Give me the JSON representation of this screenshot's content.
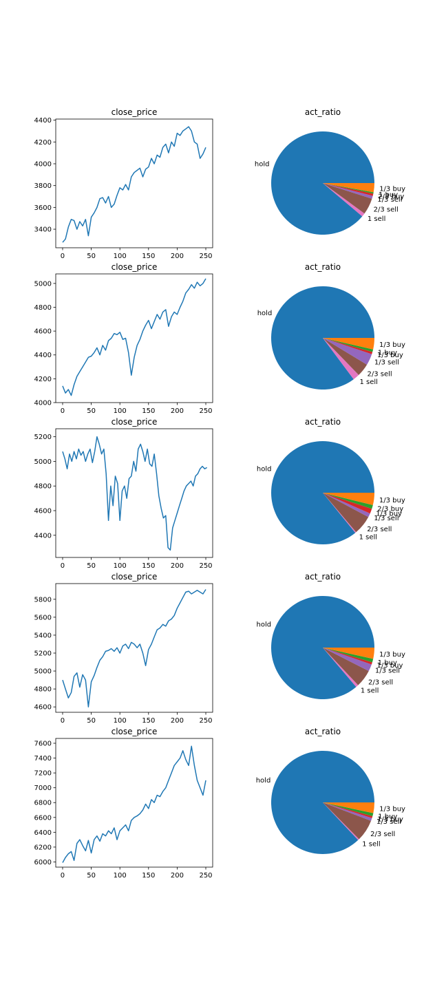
{
  "chart_data": [
    {
      "type": "line",
      "title": "close_price",
      "xlim": [
        -12,
        262
      ],
      "ylim": [
        3230,
        4410
      ],
      "xticks": [
        0,
        50,
        100,
        150,
        200,
        250
      ],
      "yticks": [
        3400,
        3600,
        3800,
        4000,
        4200,
        4400
      ],
      "series": [
        {
          "color": "#1f77b4",
          "x": [
            0,
            5,
            10,
            15,
            20,
            25,
            30,
            35,
            40,
            45,
            50,
            55,
            60,
            65,
            70,
            75,
            80,
            85,
            90,
            95,
            100,
            105,
            110,
            115,
            120,
            125,
            130,
            135,
            140,
            145,
            150,
            155,
            160,
            165,
            170,
            175,
            180,
            185,
            190,
            195,
            200,
            205,
            210,
            215,
            220,
            225,
            230,
            235,
            240,
            245,
            250
          ],
          "y": [
            3280,
            3310,
            3420,
            3490,
            3480,
            3400,
            3470,
            3430,
            3490,
            3340,
            3510,
            3550,
            3600,
            3680,
            3690,
            3640,
            3700,
            3600,
            3630,
            3710,
            3780,
            3760,
            3810,
            3760,
            3880,
            3920,
            3940,
            3960,
            3880,
            3950,
            3970,
            4050,
            4000,
            4080,
            4060,
            4150,
            4180,
            4100,
            4200,
            4160,
            4280,
            4260,
            4300,
            4320,
            4340,
            4300,
            4200,
            4180,
            4050,
            4090,
            4150
          ]
        }
      ]
    },
    {
      "type": "pie",
      "title": "act_ratio",
      "labels": [
        "hold",
        "1 sell",
        "2/3 sell",
        "1/3 sell",
        "2/3 buy",
        "1 buy",
        "1/3 buy"
      ],
      "values": [
        86.8,
        1.1,
        5.0,
        0.9,
        0.7,
        0.4,
        2.8
      ],
      "colors": [
        "#1f77b4",
        "#e377c2",
        "#8c564b",
        "#9467bd",
        "#d62728",
        "#2ca02c",
        "#ff7f0e"
      ],
      "label_order": [
        0,
        1,
        2,
        3,
        4,
        5,
        6
      ],
      "label_fan": 1
    },
    {
      "type": "line",
      "title": "close_price",
      "xlim": [
        -12,
        262
      ],
      "ylim": [
        4000,
        5080
      ],
      "xticks": [
        0,
        50,
        100,
        150,
        200,
        250
      ],
      "yticks": [
        4000,
        4200,
        4400,
        4600,
        4800,
        5000
      ],
      "series": [
        {
          "color": "#1f77b4",
          "x": [
            0,
            5,
            10,
            15,
            20,
            25,
            30,
            35,
            40,
            45,
            50,
            55,
            60,
            65,
            70,
            75,
            80,
            85,
            90,
            95,
            100,
            105,
            110,
            115,
            120,
            125,
            130,
            135,
            140,
            145,
            150,
            155,
            160,
            165,
            170,
            175,
            180,
            185,
            190,
            195,
            200,
            205,
            210,
            215,
            220,
            225,
            230,
            235,
            240,
            245,
            250
          ],
          "y": [
            4140,
            4080,
            4110,
            4060,
            4150,
            4220,
            4260,
            4300,
            4340,
            4380,
            4390,
            4420,
            4460,
            4400,
            4480,
            4440,
            4520,
            4540,
            4580,
            4570,
            4590,
            4530,
            4540,
            4420,
            4230,
            4380,
            4480,
            4530,
            4600,
            4650,
            4690,
            4620,
            4680,
            4740,
            4700,
            4760,
            4780,
            4640,
            4720,
            4760,
            4740,
            4800,
            4850,
            4920,
            4950,
            4990,
            4960,
            5010,
            4980,
            5000,
            5040
          ]
        }
      ]
    },
    {
      "type": "pie",
      "title": "act_ratio",
      "labels": [
        "hold",
        "1 sell",
        "2/3 sell",
        "1/3 sell",
        "1/3 buy",
        "1 buy",
        "1/3 buy"
      ],
      "values": [
        83.5,
        2.0,
        4.0,
        3.5,
        0.7,
        0.8,
        3.5
      ],
      "colors": [
        "#1f77b4",
        "#e377c2",
        "#8c564b",
        "#9467bd",
        "#d62728",
        "#2ca02c",
        "#ff7f0e"
      ],
      "label_order": [
        0,
        1,
        2,
        3,
        4,
        5,
        6
      ],
      "label_fan": 1
    },
    {
      "type": "line",
      "title": "close_price",
      "xlim": [
        -12,
        262
      ],
      "ylim": [
        4220,
        5265
      ],
      "xticks": [
        0,
        50,
        100,
        150,
        200,
        250
      ],
      "yticks": [
        4400,
        4600,
        4800,
        5000,
        5200
      ],
      "series": [
        {
          "color": "#1f77b4",
          "x": [
            0,
            4,
            8,
            12,
            16,
            20,
            24,
            28,
            32,
            36,
            40,
            44,
            48,
            52,
            56,
            60,
            64,
            68,
            72,
            76,
            80,
            84,
            88,
            92,
            96,
            100,
            104,
            108,
            112,
            116,
            120,
            124,
            128,
            132,
            136,
            140,
            144,
            148,
            152,
            156,
            160,
            164,
            168,
            172,
            176,
            180,
            184,
            188,
            192,
            196,
            200,
            204,
            208,
            212,
            216,
            220,
            224,
            228,
            232,
            236,
            240,
            244,
            248,
            252
          ],
          "y": [
            5080,
            5020,
            4940,
            5060,
            5000,
            5080,
            5020,
            5100,
            5050,
            5080,
            5000,
            5060,
            5100,
            4990,
            5080,
            5200,
            5140,
            5060,
            5100,
            4900,
            4520,
            4800,
            4640,
            4880,
            4820,
            4520,
            4760,
            4800,
            4700,
            4860,
            4880,
            5000,
            4920,
            5100,
            5140,
            5080,
            5000,
            5100,
            4980,
            4960,
            5060,
            4900,
            4720,
            4620,
            4540,
            4560,
            4300,
            4280,
            4460,
            4520,
            4580,
            4640,
            4700,
            4760,
            4800,
            4820,
            4840,
            4800,
            4880,
            4900,
            4940,
            4960,
            4940,
            4950
          ]
        }
      ]
    },
    {
      "type": "pie",
      "title": "act_ratio",
      "labels": [
        "hold",
        "1 sell",
        "2/3 sell",
        "1/3 sell",
        "1/3 buy",
        "2/3 buy",
        "1/3 buy"
      ],
      "values": [
        85.0,
        0.3,
        6.0,
        1.2,
        1.5,
        1.2,
        3.8
      ],
      "colors": [
        "#1f77b4",
        "#e377c2",
        "#8c564b",
        "#9467bd",
        "#d62728",
        "#2ca02c",
        "#ff7f0e"
      ],
      "label_order": [
        0,
        1,
        2,
        3,
        5,
        4,
        6
      ],
      "label_fan": 1
    },
    {
      "type": "line",
      "title": "close_price",
      "xlim": [
        -12,
        262
      ],
      "ylim": [
        4540,
        5975
      ],
      "xticks": [
        0,
        50,
        100,
        150,
        200,
        250
      ],
      "yticks": [
        4600,
        4800,
        5000,
        5200,
        5400,
        5600,
        5800
      ],
      "series": [
        {
          "color": "#1f77b4",
          "x": [
            0,
            5,
            10,
            15,
            20,
            25,
            30,
            35,
            40,
            45,
            50,
            55,
            60,
            65,
            70,
            75,
            80,
            85,
            90,
            95,
            100,
            105,
            110,
            115,
            120,
            125,
            130,
            135,
            140,
            145,
            150,
            155,
            160,
            165,
            170,
            175,
            180,
            185,
            190,
            195,
            200,
            205,
            210,
            215,
            220,
            225,
            230,
            235,
            240,
            245,
            250
          ],
          "y": [
            4900,
            4800,
            4700,
            4760,
            4940,
            4980,
            4820,
            4960,
            4900,
            4600,
            4880,
            4950,
            5040,
            5120,
            5160,
            5220,
            5230,
            5250,
            5220,
            5260,
            5200,
            5280,
            5300,
            5250,
            5320,
            5300,
            5260,
            5300,
            5200,
            5060,
            5240,
            5300,
            5380,
            5460,
            5480,
            5520,
            5500,
            5560,
            5580,
            5620,
            5700,
            5760,
            5820,
            5880,
            5890,
            5860,
            5880,
            5900,
            5880,
            5860,
            5910
          ]
        }
      ]
    },
    {
      "type": "pie",
      "title": "act_ratio",
      "labels": [
        "hold",
        "1 sell",
        "2/3 sell",
        "1/3 sell",
        "1/3 buy",
        "1 buy",
        "1/3 buy"
      ],
      "values": [
        86.2,
        0.8,
        5.5,
        2.2,
        0.7,
        1.1,
        3.5
      ],
      "colors": [
        "#1f77b4",
        "#e377c2",
        "#8c564b",
        "#9467bd",
        "#d62728",
        "#2ca02c",
        "#ff7f0e"
      ],
      "label_order": [
        0,
        1,
        2,
        3,
        4,
        5,
        6
      ],
      "label_fan": 1
    },
    {
      "type": "line",
      "title": "close_price",
      "xlim": [
        -12,
        262
      ],
      "ylim": [
        5930,
        7665
      ],
      "xticks": [
        0,
        50,
        100,
        150,
        200,
        250
      ],
      "yticks": [
        6000,
        6200,
        6400,
        6600,
        6800,
        7000,
        7200,
        7400,
        7600
      ],
      "series": [
        {
          "color": "#1f77b4",
          "x": [
            0,
            5,
            10,
            15,
            20,
            25,
            30,
            35,
            40,
            45,
            50,
            55,
            60,
            65,
            70,
            75,
            80,
            85,
            90,
            95,
            100,
            105,
            110,
            115,
            120,
            125,
            130,
            135,
            140,
            145,
            150,
            155,
            160,
            165,
            170,
            175,
            180,
            185,
            190,
            195,
            200,
            205,
            210,
            215,
            220,
            225,
            230,
            235,
            240,
            245,
            250
          ],
          "y": [
            5990,
            6060,
            6110,
            6140,
            6020,
            6250,
            6300,
            6220,
            6150,
            6290,
            6120,
            6300,
            6350,
            6280,
            6380,
            6350,
            6420,
            6380,
            6460,
            6300,
            6420,
            6460,
            6500,
            6420,
            6560,
            6600,
            6620,
            6650,
            6700,
            6780,
            6720,
            6840,
            6800,
            6900,
            6880,
            6950,
            7000,
            7100,
            7200,
            7300,
            7350,
            7400,
            7500,
            7380,
            7300,
            7560,
            7300,
            7100,
            7000,
            6900,
            7100
          ]
        }
      ]
    },
    {
      "type": "pie",
      "title": "act_ratio",
      "labels": [
        "hold",
        "1 sell",
        "2/3 sell",
        "1/3 sell",
        "1/3 buy",
        "1 buy",
        "1/3 buy"
      ],
      "values": [
        87.0,
        0.4,
        6.8,
        0.9,
        0.6,
        1.0,
        3.3
      ],
      "colors": [
        "#1f77b4",
        "#e377c2",
        "#8c564b",
        "#9467bd",
        "#d62728",
        "#2ca02c",
        "#ff7f0e"
      ],
      "label_order": [
        0,
        1,
        2,
        3,
        4,
        5,
        6
      ],
      "label_fan": 1
    }
  ]
}
